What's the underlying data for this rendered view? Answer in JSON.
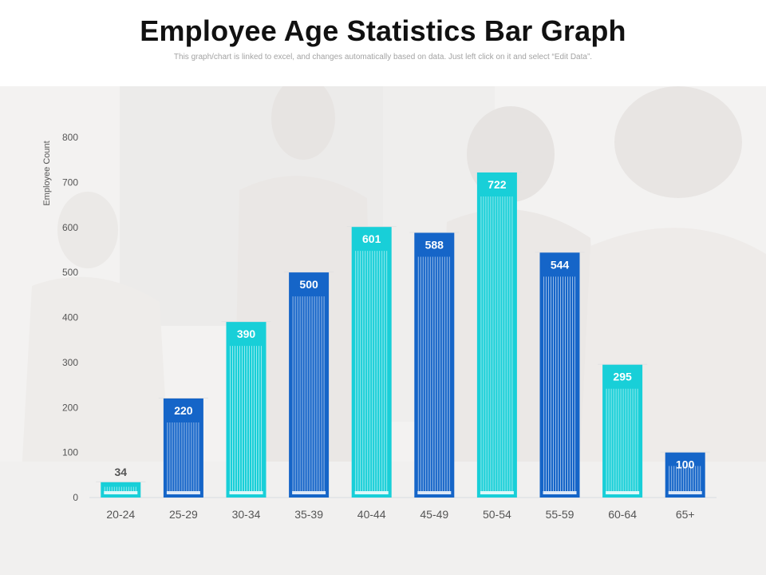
{
  "header": {
    "title": "Employee Age Statistics Bar Graph",
    "subtitle": "This graph/chart is linked to excel, and changes automatically based on data. Just left click on it and select “Edit Data”."
  },
  "colors": {
    "bar_cyan": "#18cfd8",
    "bar_blue": "#1565c8",
    "baseline": "#d6dbe0",
    "photo_bg": "#f3f2f1"
  },
  "chart_data": {
    "type": "bar",
    "ylabel": "Employee Count",
    "xlabel": "",
    "ylim": [
      0,
      800
    ],
    "yticks": [
      0,
      100,
      200,
      300,
      400,
      500,
      600,
      700,
      800
    ],
    "grid": false,
    "categories": [
      "20-24",
      "25-29",
      "30-34",
      "35-39",
      "40-44",
      "45-49",
      "50-54",
      "55-59",
      "60-64",
      "65+"
    ],
    "values": [
      34,
      220,
      390,
      500,
      601,
      588,
      722,
      544,
      295,
      100
    ],
    "value_labels": [
      "34",
      "220",
      "390",
      "500",
      "601",
      "588",
      "722",
      "544",
      "295",
      "100"
    ],
    "bar_colors": [
      "#18cfd8",
      "#1565c8",
      "#18cfd8",
      "#1565c8",
      "#18cfd8",
      "#1565c8",
      "#18cfd8",
      "#1565c8",
      "#18cfd8",
      "#1565c8"
    ]
  }
}
